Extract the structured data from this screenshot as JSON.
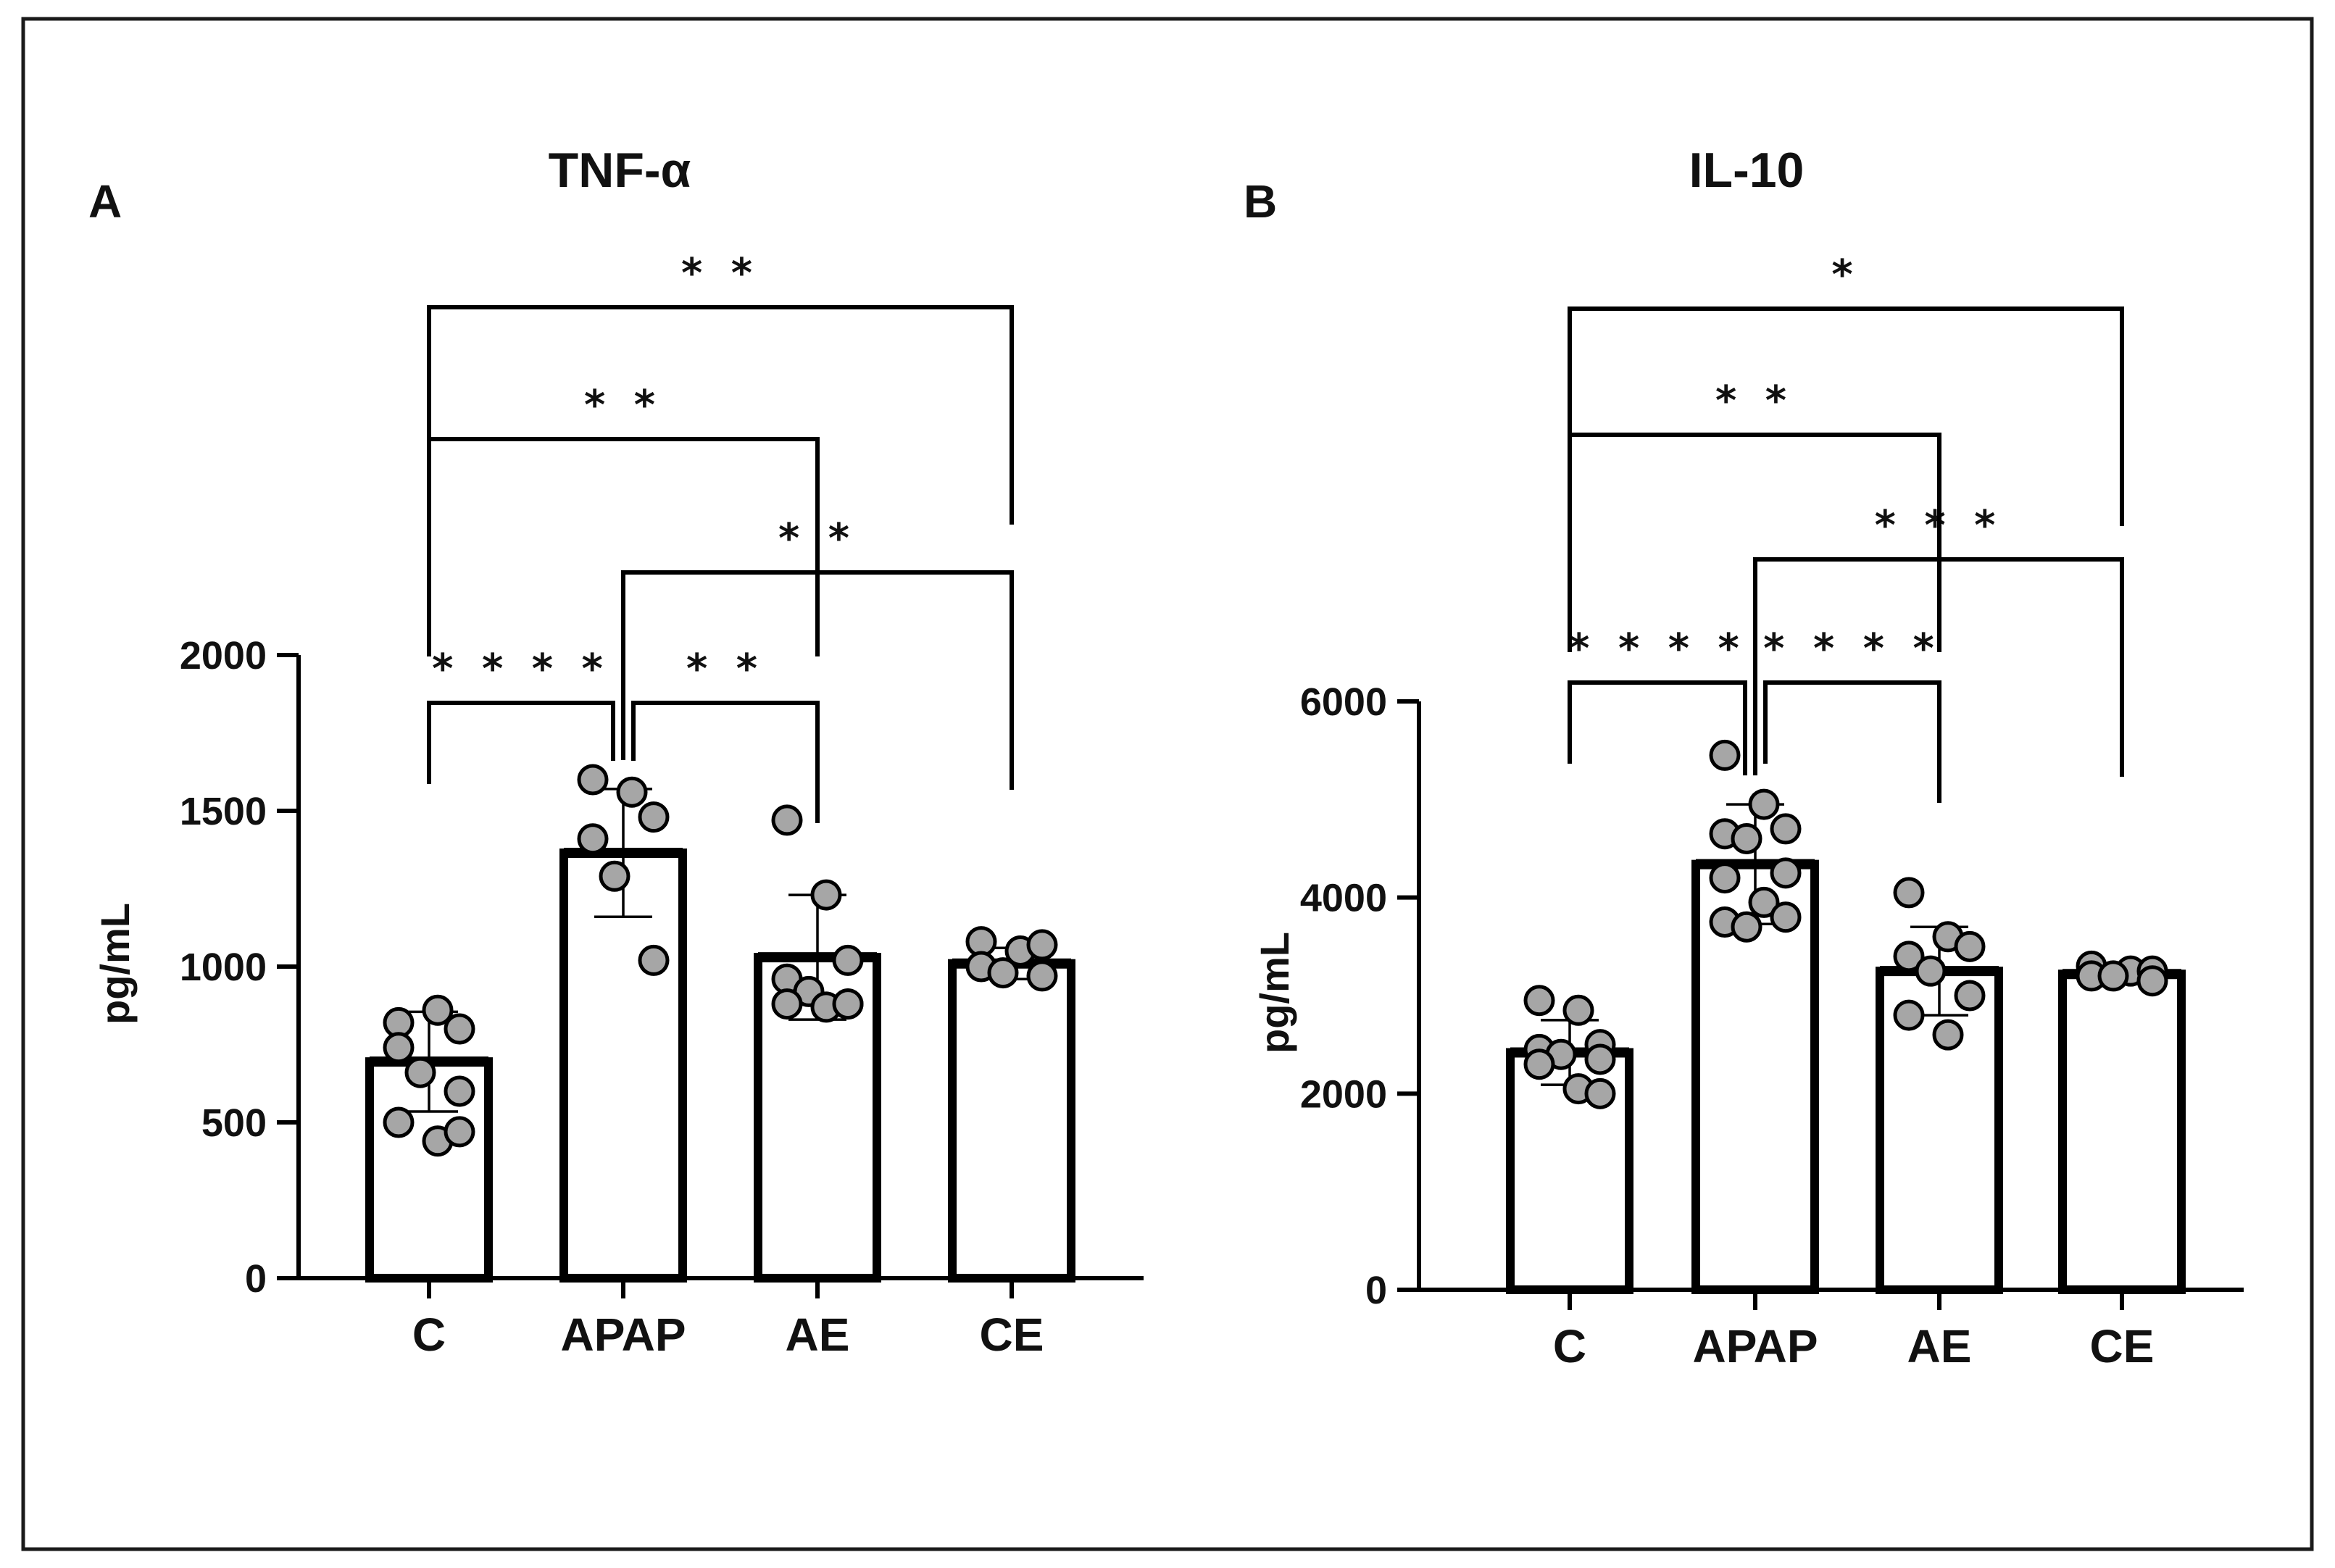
{
  "chart_data": [
    {
      "type": "bar",
      "panel": "A",
      "title": "TNF-α",
      "ylabel": "pg/mL",
      "ylim": [
        0,
        2000
      ],
      "yticks": [
        0,
        500,
        1000,
        1500,
        2000
      ],
      "categories": [
        "C",
        "APAP",
        "AE",
        "CE"
      ],
      "values": [
        695,
        1365,
        1030,
        1010
      ],
      "sd": [
        160,
        205,
        200,
        50
      ],
      "points": [
        [
          820,
          860,
          800,
          740,
          660,
          600,
          500,
          440,
          470
        ],
        [
          1600,
          1560,
          1480,
          1410,
          1290,
          1020
        ],
        [
          1470,
          1230,
          1020,
          960,
          920,
          880,
          880,
          870,
          880
        ],
        [
          1080,
          1050,
          1070,
          1000,
          980,
          970
        ]
      ],
      "comparisons": [
        {
          "from": 0,
          "to": 1,
          "label": "****"
        },
        {
          "from": 1,
          "to": 2,
          "label": "**"
        },
        {
          "from": 1,
          "to": 3,
          "label": "**"
        },
        {
          "from": 0,
          "to": 2,
          "label": "**"
        },
        {
          "from": 0,
          "to": 3,
          "label": "**"
        }
      ]
    },
    {
      "type": "bar",
      "panel": "B",
      "title": "IL-10",
      "ylabel": "pg/mL",
      "ylim": [
        0,
        6000
      ],
      "yticks": [
        0,
        2000,
        4000,
        6000
      ],
      "categories": [
        "C",
        "APAP",
        "AE",
        "CE"
      ],
      "values": [
        2420,
        4340,
        3250,
        3220
      ],
      "sd": [
        330,
        610,
        450,
        40
      ],
      "points": [
        [
          2950,
          2850,
          2500,
          2450,
          2400,
          2350,
          2300,
          2050,
          2000
        ],
        [
          5450,
          4950,
          4700,
          4650,
          4600,
          4250,
          4200,
          3950,
          3800,
          3750,
          3700
        ],
        [
          4050,
          3600,
          3500,
          3400,
          3250,
          3000,
          2800,
          2600
        ],
        [
          3300,
          3250,
          3250,
          3200,
          3200,
          3150
        ]
      ],
      "comparisons": [
        {
          "from": 0,
          "to": 1,
          "label": "****"
        },
        {
          "from": 1,
          "to": 2,
          "label": "****"
        },
        {
          "from": 1,
          "to": 3,
          "label": "***"
        },
        {
          "from": 0,
          "to": 2,
          "label": "**"
        },
        {
          "from": 0,
          "to": 3,
          "label": "*"
        }
      ]
    }
  ]
}
